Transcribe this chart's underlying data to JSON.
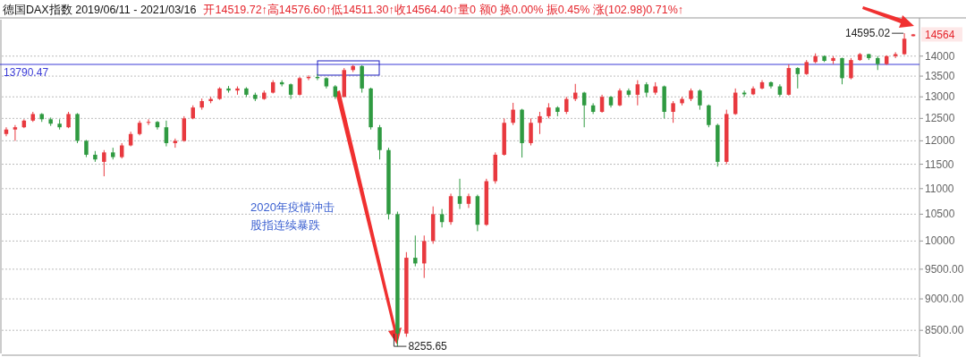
{
  "chart_data": {
    "type": "candlestick",
    "title": "德国DAX指数 2019/06/11 - 2021/03/16",
    "subtitle": "开14519.72↑高14576.60↑低14511.30↑收14564.40↑量0 额0 换0.00% 振0.45% 涨(102.98)0.71%↑",
    "categories": [
      null,
      null,
      null,
      null,
      null,
      null,
      null,
      null,
      null,
      null,
      null,
      null,
      null,
      null,
      null,
      null,
      null,
      null,
      null,
      null,
      null,
      null,
      null,
      null,
      null,
      null,
      null,
      null,
      null,
      null,
      null,
      null,
      null,
      null,
      null,
      null,
      null,
      null,
      null,
      null,
      null,
      null,
      null,
      null,
      null,
      null,
      null,
      null,
      null,
      null,
      null,
      null,
      null,
      null,
      null,
      null,
      null,
      null,
      null,
      null,
      null,
      null,
      null,
      null,
      null,
      null,
      null,
      null,
      null,
      null,
      null,
      null,
      null,
      null,
      null,
      null,
      null,
      null,
      null,
      null,
      null,
      null,
      null,
      null,
      null,
      null,
      null,
      null,
      null,
      null,
      null,
      null,
      null,
      null,
      null,
      null,
      null,
      null,
      null,
      null,
      null,
      null,
      null
    ],
    "ohlc": [
      [
        12150,
        12300,
        12100,
        12250
      ],
      [
        12250,
        12350,
        12000,
        12300
      ],
      [
        12300,
        12480,
        12280,
        12450
      ],
      [
        12450,
        12650,
        12420,
        12600
      ],
      [
        12600,
        12620,
        12420,
        12480
      ],
      [
        12480,
        12520,
        12330,
        12380
      ],
      [
        12380,
        12480,
        12250,
        12300
      ],
      [
        12300,
        12650,
        12280,
        12600
      ],
      [
        12600,
        12620,
        11950,
        12000
      ],
      [
        12000,
        12020,
        11650,
        11700
      ],
      [
        11700,
        11780,
        11550,
        11600
      ],
      [
        11550,
        11800,
        11250,
        11750
      ],
      [
        11750,
        11850,
        11600,
        11650
      ],
      [
        11650,
        11950,
        11620,
        11900
      ],
      [
        11900,
        12200,
        11880,
        12150
      ],
      [
        12150,
        12450,
        12120,
        12400
      ],
      [
        12400,
        12480,
        12350,
        12420
      ],
      [
        12420,
        12440,
        12250,
        12300
      ],
      [
        12300,
        12450,
        11880,
        11950
      ],
      [
        11950,
        12050,
        11850,
        12000
      ],
      [
        12000,
        12550,
        11980,
        12500
      ],
      [
        12500,
        12800,
        12480,
        12750
      ],
      [
        12750,
        12960,
        12700,
        12900
      ],
      [
        12900,
        13000,
        12850,
        12950
      ],
      [
        12950,
        13230,
        12930,
        13200
      ],
      [
        13200,
        13260,
        13100,
        13150
      ],
      [
        13150,
        13250,
        13050,
        13200
      ],
      [
        13200,
        13230,
        13000,
        13050
      ],
      [
        13050,
        13100,
        12900,
        12950
      ],
      [
        12950,
        13150,
        12930,
        13100
      ],
      [
        13100,
        13400,
        13080,
        13350
      ],
      [
        13350,
        13400,
        13250,
        13300
      ],
      [
        13300,
        13320,
        12950,
        13050
      ],
      [
        13050,
        13480,
        13030,
        13450
      ],
      [
        13450,
        13520,
        13400,
        13480
      ],
      [
        13480,
        13550,
        13400,
        13450
      ],
      [
        13450,
        13470,
        13200,
        13250
      ],
      [
        13250,
        13280,
        12950,
        13000
      ],
      [
        13000,
        13700,
        12980,
        13650
      ],
      [
        13650,
        13780,
        13600,
        13750
      ],
      [
        13750,
        13770,
        13100,
        13200
      ],
      [
        13200,
        13220,
        12250,
        12300
      ],
      [
        12300,
        12350,
        11600,
        11800
      ],
      [
        11800,
        11850,
        10400,
        10500
      ],
      [
        10500,
        10550,
        8255.65,
        8450
      ],
      [
        8450,
        9800,
        8400,
        9700
      ],
      [
        9700,
        10100,
        9550,
        9600
      ],
      [
        9600,
        10100,
        9350,
        10000
      ],
      [
        10000,
        10650,
        9950,
        10500
      ],
      [
        10500,
        10600,
        10250,
        10350
      ],
      [
        10350,
        10900,
        10300,
        10850
      ],
      [
        10850,
        11200,
        10600,
        10700
      ],
      [
        10700,
        10900,
        10620,
        10850
      ],
      [
        10850,
        10880,
        10180,
        10300
      ],
      [
        10300,
        11200,
        10280,
        11150
      ],
      [
        11150,
        11750,
        11100,
        11700
      ],
      [
        11700,
        12500,
        11680,
        12400
      ],
      [
        12400,
        12860,
        12350,
        12700
      ],
      [
        12700,
        12720,
        11640,
        11950
      ],
      [
        11950,
        12500,
        11900,
        12400
      ],
      [
        12400,
        12650,
        12150,
        12550
      ],
      [
        12550,
        12850,
        12500,
        12750
      ],
      [
        12750,
        12780,
        12550,
        12650
      ],
      [
        12650,
        13000,
        12600,
        12950
      ],
      [
        12950,
        13310,
        12900,
        13100
      ],
      [
        13100,
        13120,
        12300,
        12800
      ],
      [
        12800,
        12850,
        12600,
        12650
      ],
      [
        12650,
        13050,
        12630,
        13000
      ],
      [
        13000,
        13020,
        12750,
        12800
      ],
      [
        12800,
        13200,
        12780,
        13150
      ],
      [
        13150,
        13200,
        13000,
        13050
      ],
      [
        13050,
        13400,
        12800,
        13300
      ],
      [
        13300,
        13350,
        13000,
        13100
      ],
      [
        13100,
        13350,
        13050,
        13250
      ],
      [
        13250,
        13270,
        12500,
        12650
      ],
      [
        12650,
        12900,
        12400,
        12850
      ],
      [
        12850,
        13000,
        12800,
        12950
      ],
      [
        12950,
        13200,
        12900,
        13150
      ],
      [
        13150,
        13180,
        12700,
        12800
      ],
      [
        12800,
        12820,
        12300,
        12350
      ],
      [
        12350,
        12380,
        11450,
        11550
      ],
      [
        11550,
        12700,
        11500,
        12600
      ],
      [
        12600,
        13200,
        12580,
        13100
      ],
      [
        13100,
        13150,
        13000,
        13060
      ],
      [
        13060,
        13250,
        13040,
        13200
      ],
      [
        13200,
        13400,
        13180,
        13350
      ],
      [
        13350,
        13370,
        13200,
        13250
      ],
      [
        13250,
        13300,
        13000,
        13050
      ],
      [
        13050,
        13790,
        13030,
        13700
      ],
      [
        13700,
        13720,
        13200,
        13550
      ],
      [
        13550,
        13900,
        13530,
        13850
      ],
      [
        13850,
        14070,
        13820,
        14000
      ],
      [
        14000,
        14020,
        13850,
        13880
      ],
      [
        13880,
        14000,
        13800,
        13950
      ],
      [
        13950,
        13960,
        13300,
        13450
      ],
      [
        13450,
        13950,
        13420,
        13900
      ],
      [
        13900,
        14080,
        13880,
        14050
      ],
      [
        14050,
        14060,
        13900,
        13950
      ],
      [
        13950,
        14000,
        13650,
        13800
      ],
      [
        13800,
        14020,
        13780,
        14000
      ],
      [
        14000,
        14100,
        13950,
        14050
      ],
      [
        14050,
        14595.02,
        14030,
        14450
      ],
      [
        14519.72,
        14576.6,
        14511.3,
        14564.4
      ]
    ],
    "colors": [
      "#e8393f",
      "#e8393f",
      "#e8393f",
      "#e8393f",
      "#2f9a41",
      "#2f9a41",
      "#2f9a41",
      "#e8393f",
      "#2f9a41",
      "#2f9a41",
      "#2f9a41",
      "#e8393f",
      "#2f9a41",
      "#e8393f",
      "#e8393f",
      "#e8393f",
      "#e8393f",
      "#2f9a41",
      "#2f9a41",
      "#e8393f",
      "#e8393f",
      "#e8393f",
      "#e8393f",
      "#e8393f",
      "#e8393f",
      "#2f9a41",
      "#e8393f",
      "#2f9a41",
      "#2f9a41",
      "#e8393f",
      "#e8393f",
      "#2f9a41",
      "#2f9a41",
      "#e8393f",
      "#e8393f",
      "#2f9a41",
      "#2f9a41",
      "#2f9a41",
      "#e8393f",
      "#e8393f",
      "#2f9a41",
      "#2f9a41",
      "#2f9a41",
      "#2f9a41",
      "#2f9a41",
      "#e8393f",
      "#2f9a41",
      "#e8393f",
      "#e8393f",
      "#2f9a41",
      "#e8393f",
      "#2f9a41",
      "#e8393f",
      "#2f9a41",
      "#e8393f",
      "#e8393f",
      "#e8393f",
      "#e8393f",
      "#2f9a41",
      "#e8393f",
      "#e8393f",
      "#e8393f",
      "#2f9a41",
      "#e8393f",
      "#e8393f",
      "#2f9a41",
      "#2f9a41",
      "#e8393f",
      "#2f9a41",
      "#e8393f",
      "#2f9a41",
      "#e8393f",
      "#2f9a41",
      "#e8393f",
      "#2f9a41",
      "#e8393f",
      "#e8393f",
      "#e8393f",
      "#2f9a41",
      "#2f9a41",
      "#2f9a41",
      "#e8393f",
      "#e8393f",
      "#2f9a41",
      "#e8393f",
      "#e8393f",
      "#2f9a41",
      "#2f9a41",
      "#e8393f",
      "#2f9a41",
      "#e8393f",
      "#e8393f",
      "#2f9a41",
      "#e8393f",
      "#2f9a41",
      "#e8393f",
      "#e8393f",
      "#2f9a41",
      "#2f9a41",
      "#e8393f",
      "#e8393f",
      "#e8393f",
      "#e8393f"
    ],
    "log": "y",
    "ylim": [
      8150,
      14960
    ],
    "yticks": [
      14000,
      13500,
      13000,
      12500,
      12000,
      11500,
      11000,
      10500,
      10000,
      {
        "value": 9500,
        "label": "9500.00"
      },
      {
        "value": 9000,
        "label": "9000.00"
      },
      {
        "value": 8500,
        "label": "8500.00"
      }
    ],
    "grid": "y",
    "tick_labels": "y",
    "ref_lines": [
      {
        "axis": "y",
        "value": 13790.47,
        "label": "13790.47",
        "color": "#3b3bd6"
      }
    ],
    "annotations": [
      "2020年疫情冲击",
      "股指连续暴跌",
      "14595.02",
      "8255.65",
      "14564"
    ]
  }
}
